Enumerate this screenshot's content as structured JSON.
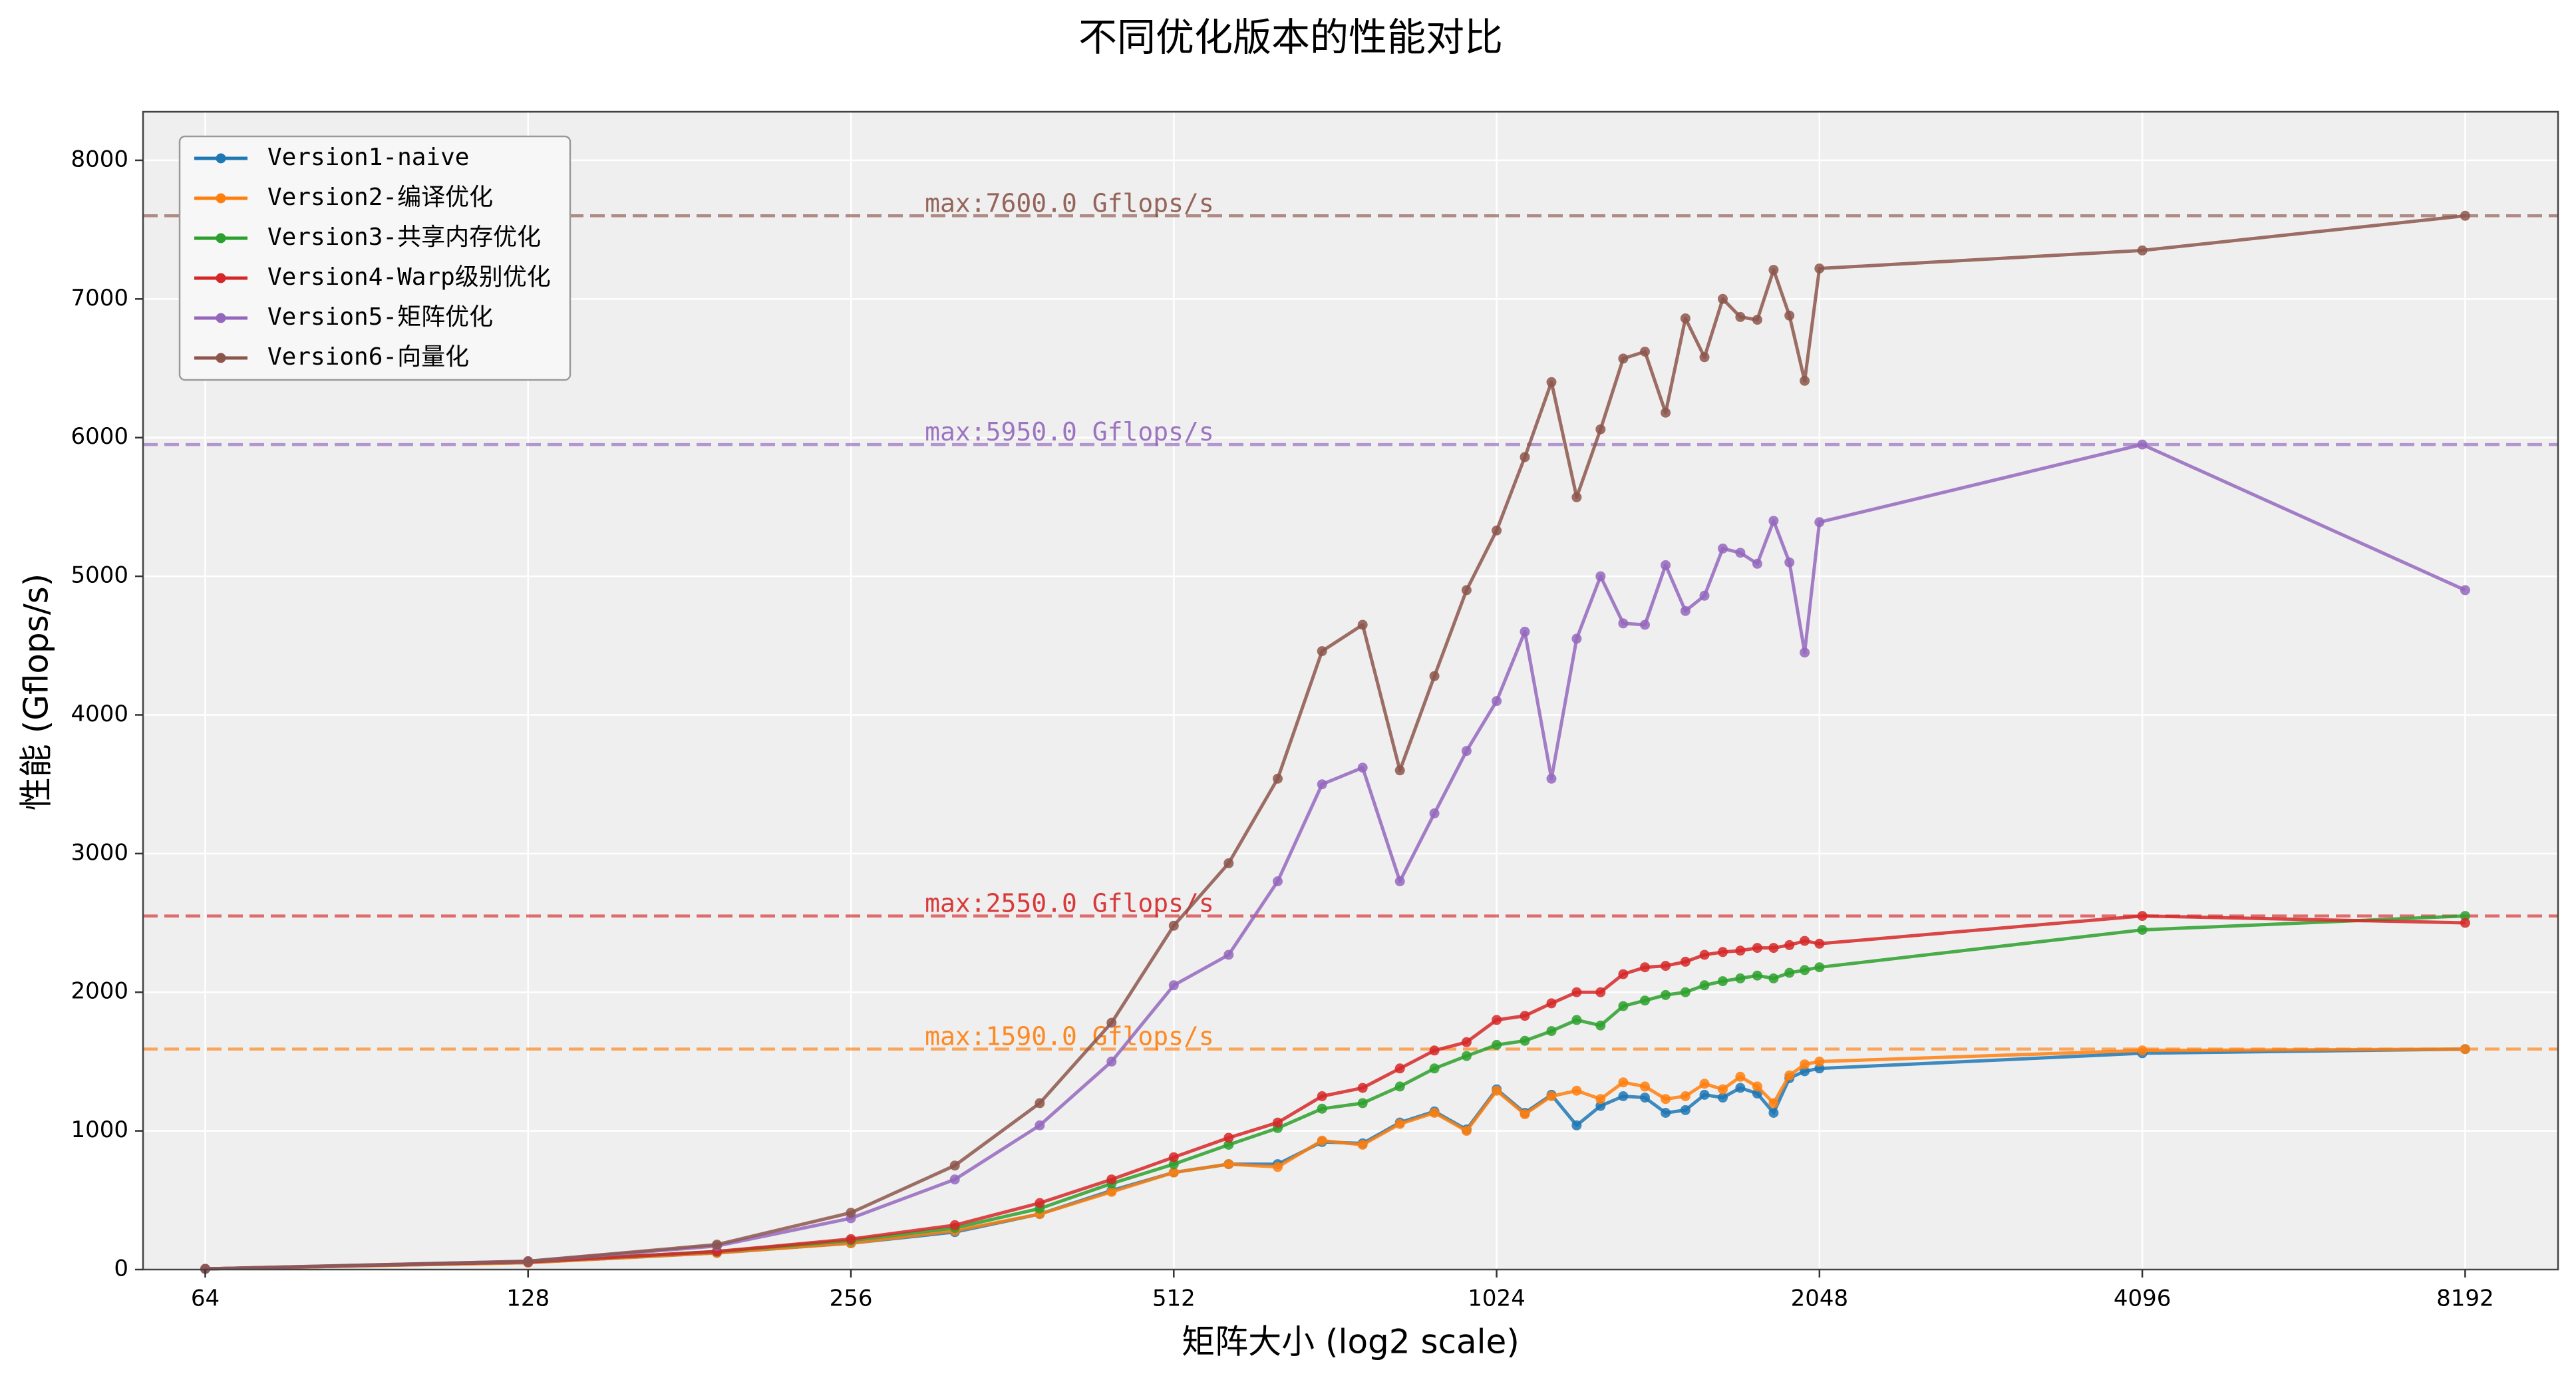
{
  "chart_data": {
    "type": "line",
    "title": "不同优化版本的性能对比",
    "xlabel": "矩阵大小 (log2 scale)",
    "ylabel": "性能 (Gflops/s)",
    "x_scale": "log2",
    "xlim": [
      56,
      10000
    ],
    "ylim": [
      0,
      8350
    ],
    "x_ticks": [
      64,
      128,
      256,
      512,
      1024,
      2048,
      4096,
      8192
    ],
    "x_tick_labels": [
      "64",
      "128",
      "256",
      "512",
      "1024",
      "2048",
      "4096",
      "8192"
    ],
    "y_ticks": [
      0,
      1000,
      2000,
      3000,
      4000,
      5000,
      6000,
      7000,
      8000
    ],
    "y_tick_labels": [
      "0",
      "1000",
      "2000",
      "3000",
      "4000",
      "5000",
      "6000",
      "7000",
      "8000"
    ],
    "grid": true,
    "legend_position": "top-left",
    "series": [
      {
        "name": "Version1-naive",
        "color": "#1f77b4",
        "x": [
          64,
          128,
          192,
          256,
          320,
          384,
          448,
          512,
          576,
          640,
          704,
          768,
          832,
          896,
          960,
          1024,
          1088,
          1152,
          1216,
          1280,
          1344,
          1408,
          1472,
          1536,
          1600,
          1664,
          1728,
          1792,
          1856,
          1920,
          1984,
          2048,
          4096,
          8192
        ],
        "y": [
          5,
          50,
          120,
          190,
          270,
          400,
          570,
          700,
          760,
          760,
          920,
          910,
          1060,
          1140,
          1010,
          1300,
          1130,
          1260,
          1040,
          1180,
          1250,
          1240,
          1130,
          1150,
          1260,
          1240,
          1310,
          1270,
          1130,
          1380,
          1430,
          1450,
          1560,
          1590
        ]
      },
      {
        "name": "Version2-编译优化",
        "color": "#ff7f0e",
        "x": [
          64,
          128,
          192,
          256,
          320,
          384,
          448,
          512,
          576,
          640,
          704,
          768,
          832,
          896,
          960,
          1024,
          1088,
          1152,
          1216,
          1280,
          1344,
          1408,
          1472,
          1536,
          1600,
          1664,
          1728,
          1792,
          1856,
          1920,
          1984,
          2048,
          4096,
          8192
        ],
        "y": [
          5,
          50,
          120,
          190,
          280,
          400,
          560,
          700,
          760,
          740,
          930,
          900,
          1050,
          1130,
          1000,
          1290,
          1120,
          1250,
          1290,
          1230,
          1350,
          1320,
          1230,
          1250,
          1340,
          1300,
          1390,
          1320,
          1200,
          1400,
          1480,
          1500,
          1580,
          1590
        ]
      },
      {
        "name": "Version3-共享内存优化",
        "color": "#2ca02c",
        "x": [
          64,
          128,
          192,
          256,
          320,
          384,
          448,
          512,
          576,
          640,
          704,
          768,
          832,
          896,
          960,
          1024,
          1088,
          1152,
          1216,
          1280,
          1344,
          1408,
          1472,
          1536,
          1600,
          1664,
          1728,
          1792,
          1856,
          1920,
          1984,
          2048,
          4096,
          8192
        ],
        "y": [
          5,
          55,
          130,
          210,
          300,
          440,
          620,
          760,
          900,
          1020,
          1160,
          1200,
          1320,
          1450,
          1540,
          1620,
          1650,
          1720,
          1800,
          1760,
          1900,
          1940,
          1980,
          2000,
          2050,
          2080,
          2100,
          2120,
          2100,
          2140,
          2160,
          2180,
          2450,
          2550
        ]
      },
      {
        "name": "Version4-Warp级别优化",
        "color": "#d62728",
        "x": [
          64,
          128,
          192,
          256,
          320,
          384,
          448,
          512,
          576,
          640,
          704,
          768,
          832,
          896,
          960,
          1024,
          1088,
          1152,
          1216,
          1280,
          1344,
          1408,
          1472,
          1536,
          1600,
          1664,
          1728,
          1792,
          1856,
          1920,
          1984,
          2048,
          4096,
          8192
        ],
        "y": [
          5,
          55,
          130,
          220,
          320,
          480,
          650,
          810,
          950,
          1060,
          1250,
          1310,
          1450,
          1580,
          1640,
          1800,
          1830,
          1920,
          2000,
          2000,
          2130,
          2180,
          2190,
          2220,
          2270,
          2290,
          2300,
          2320,
          2320,
          2340,
          2370,
          2350,
          2550,
          2500
        ]
      },
      {
        "name": "Version5-矩阵优化",
        "color": "#9467bd",
        "x": [
          64,
          128,
          192,
          256,
          320,
          384,
          448,
          512,
          576,
          640,
          704,
          768,
          832,
          896,
          960,
          1024,
          1088,
          1152,
          1216,
          1280,
          1344,
          1408,
          1472,
          1536,
          1600,
          1664,
          1728,
          1792,
          1856,
          1920,
          1984,
          2048,
          4096,
          8192
        ],
        "y": [
          5,
          60,
          170,
          370,
          650,
          1040,
          1500,
          2050,
          2270,
          2800,
          3500,
          3620,
          2800,
          3290,
          3740,
          4100,
          4600,
          3540,
          4550,
          5000,
          4660,
          4650,
          5080,
          4750,
          4860,
          5200,
          5170,
          5090,
          5400,
          5100,
          4450,
          5390,
          5950,
          4900
        ]
      },
      {
        "name": "Version6-向量化",
        "color": "#8c564b",
        "x": [
          64,
          128,
          192,
          256,
          320,
          384,
          448,
          512,
          576,
          640,
          704,
          768,
          832,
          896,
          960,
          1024,
          1088,
          1152,
          1216,
          1280,
          1344,
          1408,
          1472,
          1536,
          1600,
          1664,
          1728,
          1792,
          1856,
          1920,
          1984,
          2048,
          4096,
          8192
        ],
        "y": [
          5,
          60,
          180,
          410,
          750,
          1200,
          1780,
          2480,
          2930,
          3540,
          4460,
          4650,
          3600,
          4280,
          4900,
          5330,
          5860,
          6400,
          5570,
          6060,
          6570,
          6620,
          6180,
          6860,
          6580,
          7000,
          6870,
          6850,
          7210,
          6880,
          6410,
          7220,
          7350,
          7600
        ]
      }
    ],
    "annotations": [
      {
        "text": "max:7600.0 Gflops/s",
        "y": 7600,
        "color": "#8c564b"
      },
      {
        "text": "max:5950.0 Gflops/s",
        "y": 5950,
        "color": "#9467bd"
      },
      {
        "text": "max:2550.0 Gflops/s",
        "y": 2550,
        "color": "#d62728"
      },
      {
        "text": "max:1590.0 Gflops/s",
        "y": 1590,
        "color": "#ff7f0e"
      }
    ]
  }
}
